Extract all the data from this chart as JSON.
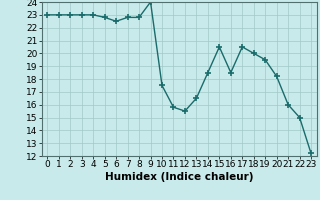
{
  "x": [
    0,
    1,
    2,
    3,
    4,
    5,
    6,
    7,
    8,
    9,
    10,
    11,
    12,
    13,
    14,
    15,
    16,
    17,
    18,
    19,
    20,
    21,
    22,
    23
  ],
  "y": [
    23,
    23,
    23,
    23,
    23,
    22.8,
    22.5,
    22.8,
    22.8,
    24,
    17.5,
    15.8,
    15.5,
    16.5,
    18.5,
    20.5,
    18.5,
    20.5,
    20,
    19.5,
    18.2,
    16,
    15,
    12.2
  ],
  "line_color": "#1a6b6b",
  "marker": "+",
  "marker_size": 4,
  "marker_lw": 1.2,
  "line_width": 1.0,
  "bg_color": "#c8eaea",
  "grid_color": "#a0c8c8",
  "xlabel": "Humidex (Indice chaleur)",
  "xlim": [
    -0.5,
    23.5
  ],
  "ylim": [
    12,
    24
  ],
  "yticks": [
    12,
    13,
    14,
    15,
    16,
    17,
    18,
    19,
    20,
    21,
    22,
    23,
    24
  ],
  "xticks": [
    0,
    1,
    2,
    3,
    4,
    5,
    6,
    7,
    8,
    9,
    10,
    11,
    12,
    13,
    14,
    15,
    16,
    17,
    18,
    19,
    20,
    21,
    22,
    23
  ],
  "xlabel_fontsize": 7.5,
  "tick_fontsize": 6.5
}
